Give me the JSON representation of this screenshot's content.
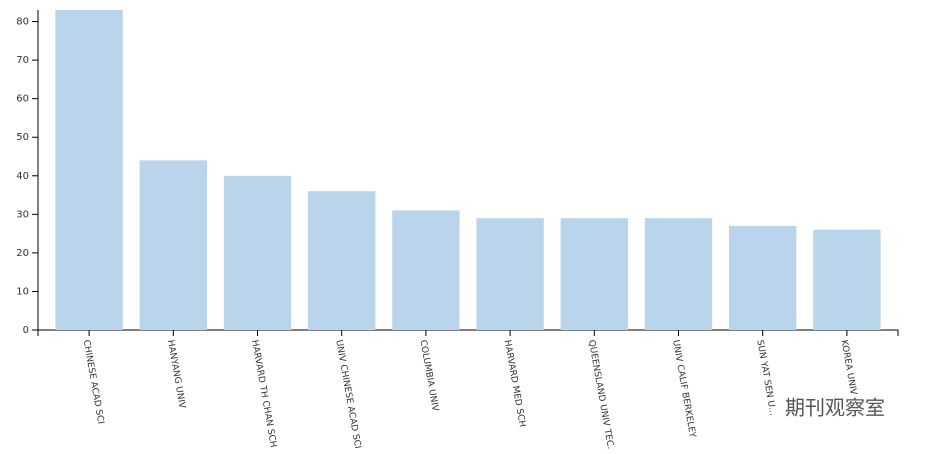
{
  "chart_data": {
    "type": "bar",
    "categories": [
      "CHINESE ACAD SCI",
      "HANYANG UNIV",
      "HARVARD TH CHAN SCH ...",
      "UNIV CHINESE ACAD SCI",
      "COLUMBIA UNIV",
      "HARVARD MED SCH",
      "QUEENSLAND UNIV TEC...",
      "UNIV CALIF BERKELEY",
      "SUN YAT SEN U...",
      "KOREA UNIV"
    ],
    "values": [
      83,
      44,
      40,
      36,
      31,
      29,
      29,
      29,
      27,
      26
    ],
    "color": "#bad4eb",
    "ylim": [
      0,
      83
    ],
    "yticks": [
      0,
      10,
      20,
      30,
      40,
      50,
      60,
      70,
      80
    ],
    "watermark": "期刊观察室"
  }
}
